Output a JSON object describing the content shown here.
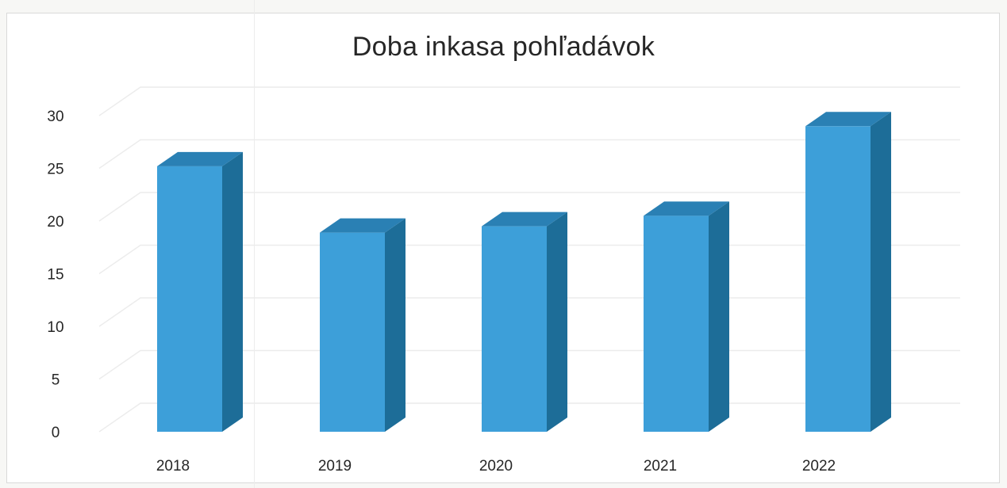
{
  "chart_data": {
    "type": "bar",
    "title": "Doba inkasa pohľadávok",
    "categories": [
      "2018",
      "2019",
      "2020",
      "2021",
      "2022"
    ],
    "values": [
      25.2,
      18.9,
      19.5,
      20.5,
      29.0
    ],
    "ylim": [
      0,
      30
    ],
    "yticks": [
      "0",
      "5",
      "10",
      "15",
      "20",
      "25",
      "30"
    ],
    "grid": true,
    "legend": "none",
    "style": "3d-column",
    "colors": {
      "front": "#3d9fd9",
      "side": "#1d6d98",
      "top": "#2a80b4"
    }
  }
}
